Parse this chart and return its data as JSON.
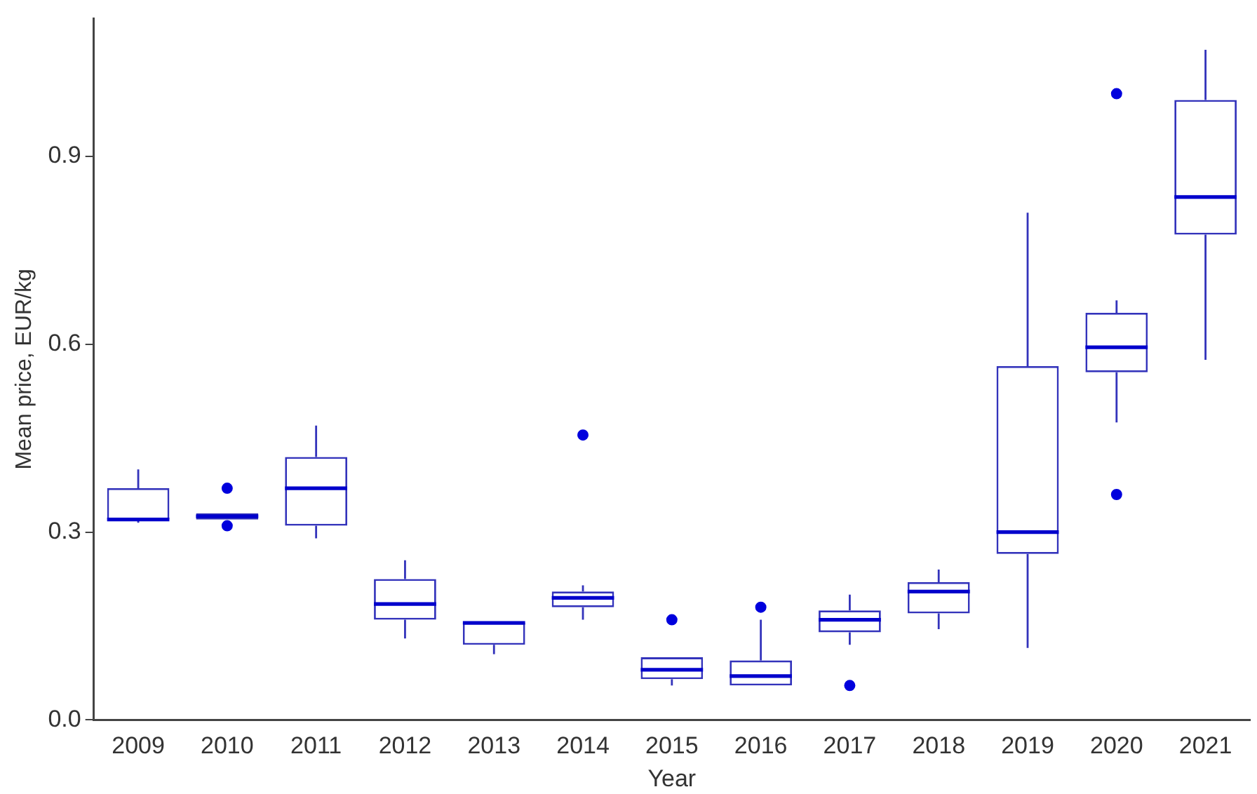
{
  "chart_data": {
    "type": "box",
    "xlabel": "Year",
    "ylabel": "Mean price, EUR/kg",
    "categories": [
      "2009",
      "2010",
      "2011",
      "2012",
      "2013",
      "2014",
      "2015",
      "2016",
      "2017",
      "2018",
      "2019",
      "2020",
      "2021"
    ],
    "color": "#3333bb",
    "boxes": [
      {
        "low": 0.315,
        "q1": 0.32,
        "median": 0.32,
        "q3": 0.37,
        "high": 0.4
      },
      {
        "low": 0.32,
        "q1": 0.32,
        "median": 0.325,
        "q3": 0.33,
        "high": 0.33,
        "outliers": [
          0.37,
          0.31
        ]
      },
      {
        "low": 0.29,
        "q1": 0.31,
        "median": 0.37,
        "q3": 0.42,
        "high": 0.47
      },
      {
        "low": 0.13,
        "q1": 0.16,
        "median": 0.185,
        "q3": 0.225,
        "high": 0.255
      },
      {
        "low": 0.105,
        "q1": 0.12,
        "median": 0.155,
        "q3": 0.155,
        "high": 0.155
      },
      {
        "low": 0.16,
        "q1": 0.18,
        "median": 0.195,
        "q3": 0.205,
        "high": 0.215,
        "outliers": [
          0.455
        ]
      },
      {
        "low": 0.055,
        "q1": 0.065,
        "median": 0.08,
        "q3": 0.1,
        "high": 0.1,
        "outliers": [
          0.16
        ]
      },
      {
        "low": 0.055,
        "q1": 0.055,
        "median": 0.07,
        "q3": 0.095,
        "high": 0.16,
        "outliers": [
          0.18
        ]
      },
      {
        "low": 0.12,
        "q1": 0.14,
        "median": 0.16,
        "q3": 0.175,
        "high": 0.2,
        "outliers": [
          0.055
        ]
      },
      {
        "low": 0.145,
        "q1": 0.17,
        "median": 0.205,
        "q3": 0.22,
        "high": 0.24
      },
      {
        "low": 0.115,
        "q1": 0.265,
        "median": 0.3,
        "q3": 0.565,
        "high": 0.81
      },
      {
        "low": 0.475,
        "q1": 0.555,
        "median": 0.595,
        "q3": 0.65,
        "high": 0.67,
        "outliers": [
          1.0,
          0.36
        ]
      },
      {
        "low": 0.575,
        "q1": 0.775,
        "median": 0.835,
        "q3": 0.99,
        "high": 1.07
      }
    ],
    "ylim": [
      0,
      1.12
    ],
    "yticks": [
      {
        "value": 0,
        "label": "0.0"
      },
      0.3,
      0.6,
      0.9
    ],
    "grid": false,
    "legend": false
  }
}
